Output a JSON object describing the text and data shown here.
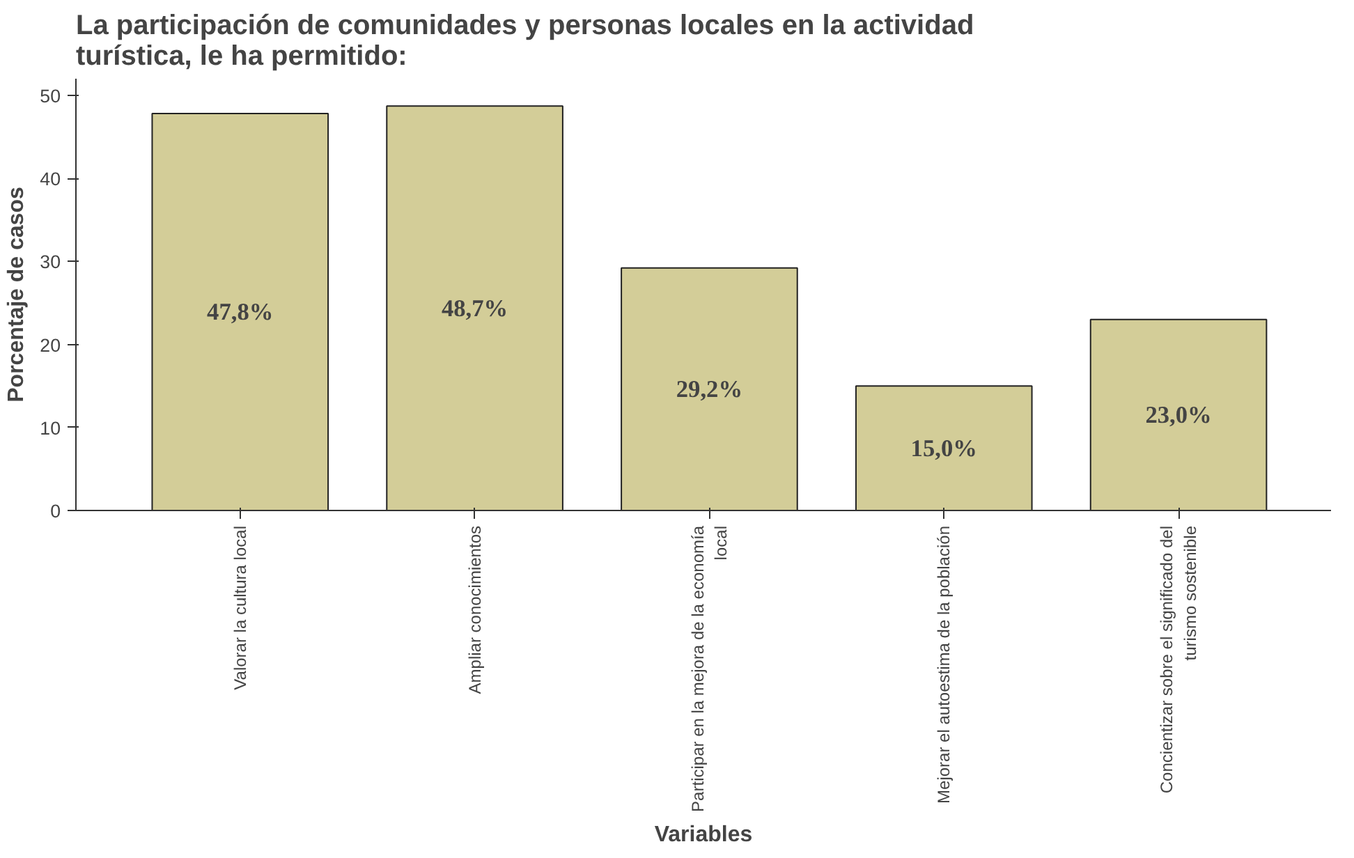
{
  "chart_data": {
    "type": "bar",
    "title": "La participación de comunidades y personas locales en la actividad turística, le ha permitido:",
    "xlabel": "Variables",
    "ylabel": "Porcentaje de casos",
    "categories": [
      "Valorar la cultura local",
      "Ampliar conocimientos",
      "Participar en la mejora de la economía local",
      "Mejorar el autoestima de la población",
      "Concientizar sobre el significado del turismo sostenible"
    ],
    "values": [
      47.8,
      48.7,
      29.2,
      15.0,
      23.0
    ],
    "value_labels": [
      "47,8%",
      "48,7%",
      "29,2%",
      "15,0%",
      "23,0%"
    ],
    "color": "#d3cd98",
    "ylim": [
      0,
      52
    ],
    "yticks": [
      0,
      10,
      20,
      30,
      40,
      50
    ],
    "grid": false
  }
}
